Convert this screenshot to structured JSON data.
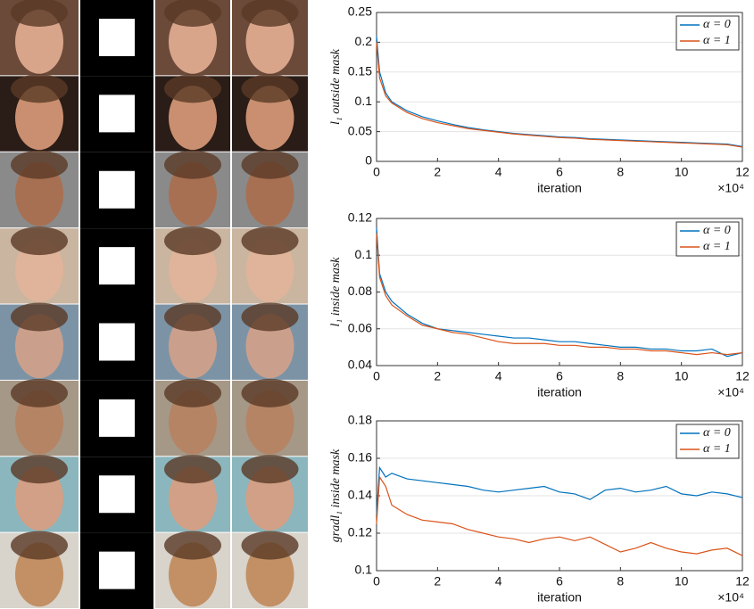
{
  "chart_data": [
    {
      "type": "line",
      "ylabel": "l₁ outside mask",
      "xlabel": "iteration",
      "x_multiplier": "×10⁴",
      "x": [
        0,
        0.1,
        0.3,
        0.5,
        1,
        1.5,
        2,
        2.5,
        3,
        3.5,
        4,
        4.5,
        5,
        5.5,
        6,
        6.5,
        7,
        7.5,
        8,
        8.5,
        9,
        9.5,
        10,
        10.5,
        11,
        11.5,
        12
      ],
      "series": [
        {
          "name": "α = 0",
          "color": "#0072bd",
          "values": [
            0.21,
            0.15,
            0.115,
            0.1,
            0.085,
            0.075,
            0.068,
            0.062,
            0.057,
            0.053,
            0.05,
            0.047,
            0.045,
            0.043,
            0.041,
            0.04,
            0.038,
            0.037,
            0.036,
            0.035,
            0.034,
            0.033,
            0.032,
            0.031,
            0.03,
            0.029,
            0.025
          ]
        },
        {
          "name": "α = 1",
          "color": "#d95319",
          "values": [
            0.2,
            0.14,
            0.11,
            0.098,
            0.082,
            0.072,
            0.065,
            0.06,
            0.055,
            0.052,
            0.049,
            0.046,
            0.044,
            0.042,
            0.04,
            0.039,
            0.037,
            0.036,
            0.035,
            0.034,
            0.033,
            0.032,
            0.031,
            0.03,
            0.029,
            0.028,
            0.024
          ]
        }
      ],
      "xlim": [
        0,
        12
      ],
      "xticks": [
        0,
        2,
        4,
        6,
        8,
        10,
        12
      ],
      "ylim": [
        0,
        0.25
      ],
      "yticks": [
        0,
        0.05,
        0.1,
        0.15,
        0.2,
        0.25
      ],
      "grid": true,
      "legend": "top-right"
    },
    {
      "type": "line",
      "ylabel": "l₁ inside mask",
      "xlabel": "iteration",
      "x_multiplier": "×10⁴",
      "x": [
        0,
        0.1,
        0.3,
        0.5,
        1,
        1.5,
        2,
        2.5,
        3,
        3.5,
        4,
        4.5,
        5,
        5.5,
        6,
        6.5,
        7,
        7.5,
        8,
        8.5,
        9,
        9.5,
        10,
        10.5,
        11,
        11.5,
        12
      ],
      "series": [
        {
          "name": "α = 0",
          "color": "#0072bd",
          "values": [
            0.115,
            0.09,
            0.08,
            0.075,
            0.068,
            0.063,
            0.06,
            0.059,
            0.058,
            0.057,
            0.056,
            0.055,
            0.055,
            0.054,
            0.053,
            0.053,
            0.052,
            0.051,
            0.05,
            0.05,
            0.049,
            0.049,
            0.048,
            0.048,
            0.049,
            0.045,
            0.047
          ]
        },
        {
          "name": "α = 1",
          "color": "#d95319",
          "values": [
            0.112,
            0.088,
            0.078,
            0.073,
            0.067,
            0.062,
            0.06,
            0.058,
            0.057,
            0.055,
            0.053,
            0.052,
            0.052,
            0.052,
            0.051,
            0.051,
            0.05,
            0.05,
            0.049,
            0.049,
            0.048,
            0.048,
            0.047,
            0.046,
            0.047,
            0.046,
            0.047
          ]
        }
      ],
      "xlim": [
        0,
        12
      ],
      "xticks": [
        0,
        2,
        4,
        6,
        8,
        10,
        12
      ],
      "ylim": [
        0.04,
        0.12
      ],
      "yticks": [
        0.04,
        0.06,
        0.08,
        0.1,
        0.12
      ],
      "grid": true,
      "legend": "top-right"
    },
    {
      "type": "line",
      "ylabel": "gradl₁ inside mask",
      "xlabel": "iteration",
      "x_multiplier": "×10⁴",
      "x": [
        0,
        0.1,
        0.3,
        0.5,
        1,
        1.5,
        2,
        2.5,
        3,
        3.5,
        4,
        4.5,
        5,
        5.5,
        6,
        6.5,
        7,
        7.5,
        8,
        8.5,
        9,
        9.5,
        10,
        10.5,
        11,
        11.5,
        12
      ],
      "series": [
        {
          "name": "α = 0",
          "color": "#0072bd",
          "values": [
            0.13,
            0.155,
            0.15,
            0.152,
            0.149,
            0.148,
            0.147,
            0.146,
            0.145,
            0.143,
            0.142,
            0.143,
            0.144,
            0.145,
            0.142,
            0.141,
            0.138,
            0.143,
            0.144,
            0.142,
            0.143,
            0.145,
            0.141,
            0.14,
            0.142,
            0.141,
            0.139
          ]
        },
        {
          "name": "α = 1",
          "color": "#d95319",
          "values": [
            0.125,
            0.15,
            0.145,
            0.135,
            0.13,
            0.127,
            0.126,
            0.125,
            0.122,
            0.12,
            0.118,
            0.117,
            0.115,
            0.117,
            0.118,
            0.116,
            0.118,
            0.114,
            0.11,
            0.112,
            0.115,
            0.112,
            0.11,
            0.109,
            0.111,
            0.112,
            0.108
          ]
        }
      ],
      "xlim": [
        0,
        12
      ],
      "xticks": [
        0,
        2,
        4,
        6,
        8,
        10,
        12
      ],
      "ylim": [
        0.1,
        0.18
      ],
      "yticks": [
        0.1,
        0.12,
        0.14,
        0.16,
        0.18
      ],
      "grid": true,
      "legend": "top-right"
    }
  ]
}
